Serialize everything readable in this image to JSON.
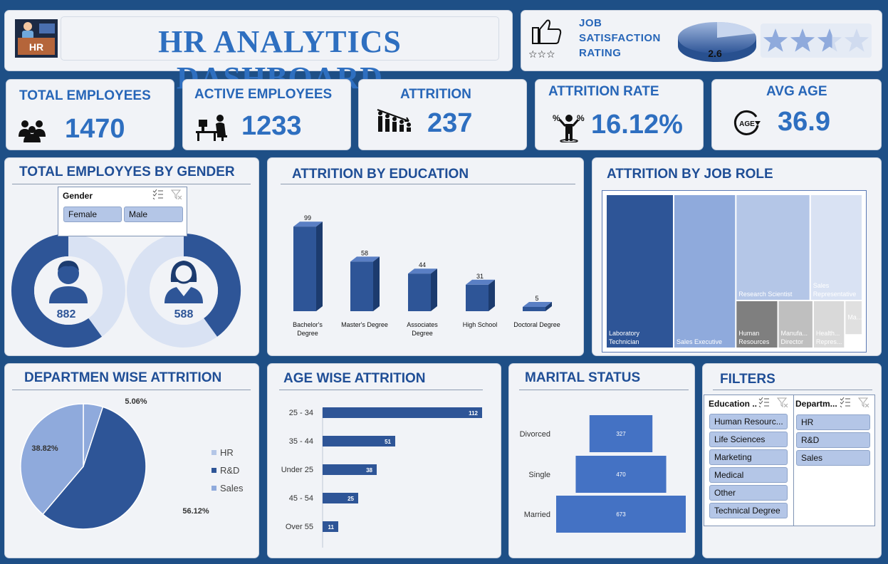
{
  "header": {
    "title": "HR ANALYTICS DASHBOARD",
    "logo_text": "HR"
  },
  "satisfaction": {
    "label_lines": [
      "JOB",
      "SATISFACTION",
      "RATING"
    ],
    "value": "2.6",
    "stars_filled": 2.6,
    "stars_total": 4
  },
  "kpis": [
    {
      "label": "TOTAL EMPLOYEES",
      "value": "1470",
      "icon": "people-group-icon"
    },
    {
      "label": "ACTIVE EMPLOYEES",
      "value": "1233",
      "icon": "desk-worker-icon"
    },
    {
      "label": "ATTRITION",
      "value": "237",
      "icon": "declining-people-icon"
    },
    {
      "label": "ATTRITION RATE",
      "value": "16.12%",
      "icon": "percent-person-icon"
    },
    {
      "label": "AVG AGE",
      "value": "36.9",
      "icon": "age-icon"
    }
  ],
  "age_icon_text": "AGE",
  "gender": {
    "title": "TOTAL EMPLOYYES BY GENDER",
    "slicer_title": "Gender",
    "options": [
      "Female",
      "Male"
    ],
    "male_count": "882",
    "female_count": "588"
  },
  "panels": {
    "education_title": "ATTRITION BY EDUCATION",
    "job_role_title": "ATTRITION BY JOB ROLE",
    "department_title": "DEPARTMEN WISE ATTRITION",
    "age_title": "AGE WISE ATTRITION",
    "marital_title": "MARITAL STATUS",
    "filters_title": "FILTERS"
  },
  "filters": {
    "education": {
      "title": "Education ...",
      "options": [
        "Human Resourc...",
        "Life Sciences",
        "Marketing",
        "Medical",
        "Other",
        "Technical Degree"
      ]
    },
    "department": {
      "title": "Departm...",
      "options": [
        "HR",
        "R&D",
        "Sales"
      ]
    }
  },
  "chart_data": [
    {
      "type": "bar",
      "title": "ATTRITION BY EDUCATION",
      "categories": [
        "Bachelor's Degree",
        "Master's Degree",
        "Associates Degree",
        "High School",
        "Doctoral Degree"
      ],
      "category_lines": [
        [
          "Bachelor's",
          "Degree"
        ],
        [
          "Master's Degree"
        ],
        [
          "Associates",
          "Degree"
        ],
        [
          "High School"
        ],
        [
          "Doctoral Degree"
        ]
      ],
      "values": [
        99,
        58,
        44,
        31,
        5
      ],
      "ylim": [
        0,
        100
      ],
      "color": "#2e5597"
    },
    {
      "type": "treemap",
      "title": "ATTRITION BY JOB ROLE",
      "categories": [
        "Laboratory Technician",
        "Sales Executive",
        "Research Scientist",
        "Sales Representative",
        "Human Resources",
        "Manufacturing Director",
        "Healthcare Representative",
        "Manager"
      ],
      "display_labels": [
        [
          "Laboratory",
          "Technician"
        ],
        [
          "Sales Executive"
        ],
        [
          "Research Scientist"
        ],
        [
          "Sales",
          "Representative"
        ],
        [
          "Human",
          "Resources"
        ],
        [
          "Manufa...",
          "Director"
        ],
        [
          "Health...",
          "Repres..."
        ],
        [
          "Ma..."
        ]
      ],
      "values": [
        62,
        57,
        47,
        33,
        12,
        10,
        9,
        5
      ],
      "colors": [
        "#2e5597",
        "#8faadc",
        "#b4c6e7",
        "#d9e2f3",
        "#7f7f7f",
        "#bfbfbf",
        "#d9d9d9",
        "#e0e0e0"
      ]
    },
    {
      "type": "pie",
      "title": "DEPARTMEN WISE ATTRITION",
      "categories": [
        "HR",
        "R&D",
        "Sales"
      ],
      "values": [
        5.06,
        56.12,
        38.82
      ],
      "labels": [
        "5.06%",
        "56.12%",
        "38.82%"
      ],
      "colors": [
        "#8faadc",
        "#2e5597",
        "#8faadc"
      ],
      "legend": "right"
    },
    {
      "type": "bar",
      "orientation": "horizontal",
      "title": "AGE WISE ATTRITION",
      "categories": [
        "25 - 34",
        "35 - 44",
        "Under 25",
        "45 - 54",
        "Over 55"
      ],
      "values": [
        112,
        51,
        38,
        25,
        11
      ],
      "xlim": [
        0,
        120
      ],
      "color": "#2e5597"
    },
    {
      "type": "bar",
      "orientation": "funnel",
      "title": "MARITAL STATUS",
      "categories": [
        "Divorced",
        "Single",
        "Married"
      ],
      "values": [
        327,
        470,
        673
      ],
      "color": "#4472c4"
    }
  ]
}
